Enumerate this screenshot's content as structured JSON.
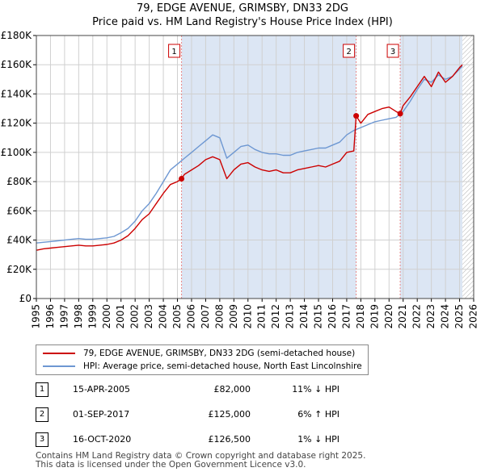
{
  "title_line1": "79, EDGE AVENUE, GRIMSBY, DN33 2DG",
  "title_line2": "Price paid vs. HM Land Registry's House Price Index (HPI)",
  "colors": {
    "price_line": "#cc0000",
    "hpi_line": "#6d97d2",
    "shade": "#dce6f4",
    "grid": "#d0d0d0",
    "marker_line": "#e88888"
  },
  "chart_data": {
    "type": "line",
    "xlim": [
      1995,
      2026
    ],
    "ylim": [
      0,
      180000
    ],
    "x_ticks": [
      1995,
      1996,
      1997,
      1998,
      1999,
      2000,
      2001,
      2002,
      2003,
      2004,
      2005,
      2006,
      2007,
      2008,
      2009,
      2010,
      2011,
      2012,
      2013,
      2014,
      2015,
      2016,
      2017,
      2018,
      2019,
      2020,
      2021,
      2022,
      2023,
      2024,
      2025,
      2026
    ],
    "y_ticks": [
      {
        "value": 0,
        "label": "£0"
      },
      {
        "value": 20000,
        "label": "£20K"
      },
      {
        "value": 40000,
        "label": "£40K"
      },
      {
        "value": 60000,
        "label": "£60K"
      },
      {
        "value": 80000,
        "label": "£80K"
      },
      {
        "value": 100000,
        "label": "£100K"
      },
      {
        "value": 120000,
        "label": "£120K"
      },
      {
        "value": 140000,
        "label": "£140K"
      },
      {
        "value": 160000,
        "label": "£160K"
      },
      {
        "value": 180000,
        "label": "£180K"
      }
    ],
    "shaded_ranges": [
      [
        2005.29,
        2017.67
      ],
      [
        2020.79,
        2025.2
      ]
    ],
    "hatched_from": 2025.2,
    "series": [
      {
        "name": "79, EDGE AVENUE, GRIMSBY, DN33 2DG (semi-detached house)",
        "color": "#cc0000",
        "x": [
          1995,
          1995.5,
          1996,
          1996.5,
          1997,
          1997.5,
          1998,
          1998.5,
          1999,
          1999.5,
          2000,
          2000.5,
          2001,
          2001.5,
          2002,
          2002.5,
          2003,
          2003.5,
          2004,
          2004.5,
          2005,
          2005.29,
          2005.5,
          2006,
          2006.5,
          2007,
          2007.5,
          2008,
          2008.5,
          2009,
          2009.5,
          2010,
          2010.5,
          2011,
          2011.5,
          2012,
          2012.5,
          2013,
          2013.5,
          2014,
          2014.5,
          2015,
          2015.5,
          2016,
          2016.5,
          2017,
          2017.5,
          2017.67,
          2018,
          2018.5,
          2019,
          2019.5,
          2020,
          2020.5,
          2020.79,
          2021,
          2021.5,
          2022,
          2022.5,
          2023,
          2023.5,
          2024,
          2024.5,
          2025,
          2025.2
        ],
        "y": [
          33000,
          34000,
          34500,
          35000,
          35500,
          36000,
          36500,
          36000,
          36000,
          36500,
          37000,
          38000,
          40000,
          43000,
          48000,
          54000,
          58000,
          65000,
          72000,
          78000,
          80000,
          82000,
          85000,
          88000,
          91000,
          95000,
          97000,
          95000,
          82000,
          88000,
          92000,
          93000,
          90000,
          88000,
          87000,
          88000,
          86000,
          86000,
          88000,
          89000,
          90000,
          91000,
          90000,
          92000,
          94000,
          100000,
          101000,
          125000,
          120000,
          126000,
          128000,
          130000,
          131000,
          128000,
          126500,
          132000,
          138000,
          145000,
          152000,
          145000,
          155000,
          148000,
          152000,
          158000,
          160000
        ]
      },
      {
        "name": "HPI: Average price, semi-detached house, North East Lincolnshire",
        "color": "#6d97d2",
        "x": [
          1995,
          1995.5,
          1996,
          1996.5,
          1997,
          1997.5,
          1998,
          1998.5,
          1999,
          1999.5,
          2000,
          2000.5,
          2001,
          2001.5,
          2002,
          2002.5,
          2003,
          2003.5,
          2004,
          2004.5,
          2005,
          2005.5,
          2006,
          2006.5,
          2007,
          2007.5,
          2008,
          2008.5,
          2009,
          2009.5,
          2010,
          2010.5,
          2011,
          2011.5,
          2012,
          2012.5,
          2013,
          2013.5,
          2014,
          2014.5,
          2015,
          2015.5,
          2016,
          2016.5,
          2017,
          2017.5,
          2018,
          2018.5,
          2019,
          2019.5,
          2020,
          2020.5,
          2021,
          2021.5,
          2022,
          2022.5,
          2023,
          2023.5,
          2024,
          2024.5,
          2025,
          2025.2
        ],
        "y": [
          38000,
          38500,
          39000,
          39500,
          40000,
          40500,
          41000,
          40500,
          40500,
          41000,
          41500,
          42500,
          45000,
          48000,
          53000,
          60000,
          65000,
          72000,
          80000,
          88000,
          92000,
          96000,
          100000,
          104000,
          108000,
          112000,
          110000,
          96000,
          100000,
          104000,
          105000,
          102000,
          100000,
          99000,
          99000,
          98000,
          98000,
          100000,
          101000,
          102000,
          103000,
          103000,
          105000,
          107000,
          112000,
          115000,
          117000,
          119000,
          121000,
          122000,
          123000,
          124000,
          128000,
          135000,
          143000,
          150000,
          148000,
          153000,
          150000,
          152000,
          157000,
          159000
        ]
      }
    ],
    "sales": [
      {
        "n": "1",
        "x": 2005.29,
        "y": 82000
      },
      {
        "n": "2",
        "x": 2017.67,
        "y": 125000
      },
      {
        "n": "3",
        "x": 2020.79,
        "y": 126500
      }
    ]
  },
  "legend": {
    "price": "79, EDGE AVENUE, GRIMSBY, DN33 2DG (semi-detached house)",
    "hpi": "HPI: Average price, semi-detached house, North East Lincolnshire"
  },
  "sales_table": [
    {
      "n": "1",
      "date": "15-APR-2005",
      "price": "£82,000",
      "hpi": "11% ↓ HPI"
    },
    {
      "n": "2",
      "date": "01-SEP-2017",
      "price": "£125,000",
      "hpi": "6% ↑ HPI"
    },
    {
      "n": "3",
      "date": "16-OCT-2020",
      "price": "£126,500",
      "hpi": "1% ↓ HPI"
    }
  ],
  "footer_line1": "Contains HM Land Registry data © Crown copyright and database right 2025.",
  "footer_line2": "This data is licensed under the Open Government Licence v3.0."
}
